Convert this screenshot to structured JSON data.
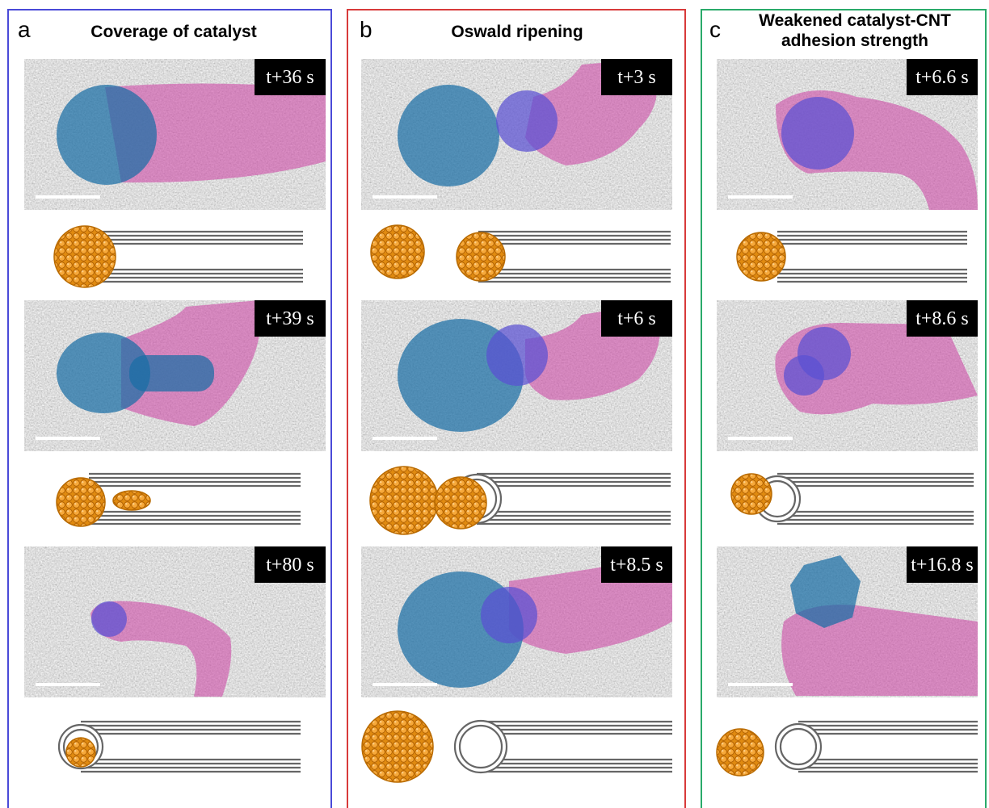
{
  "panels": [
    {
      "letter": "a",
      "title_lines": [
        "Coverage of catalyst"
      ],
      "frames": [
        "t+36 s",
        "t+39 s",
        "t+80 s"
      ]
    },
    {
      "letter": "b",
      "title_lines": [
        "Oswald ripening"
      ],
      "frames": [
        "t+3 s",
        "t+6 s",
        "t+8.5 s"
      ]
    },
    {
      "letter": "c",
      "title_lines": [
        "Weakened catalyst-CNT",
        "adhesion strength"
      ],
      "frames": [
        "t+6.6 s",
        "t+8.6 s",
        "t+16.8 s"
      ]
    }
  ]
}
